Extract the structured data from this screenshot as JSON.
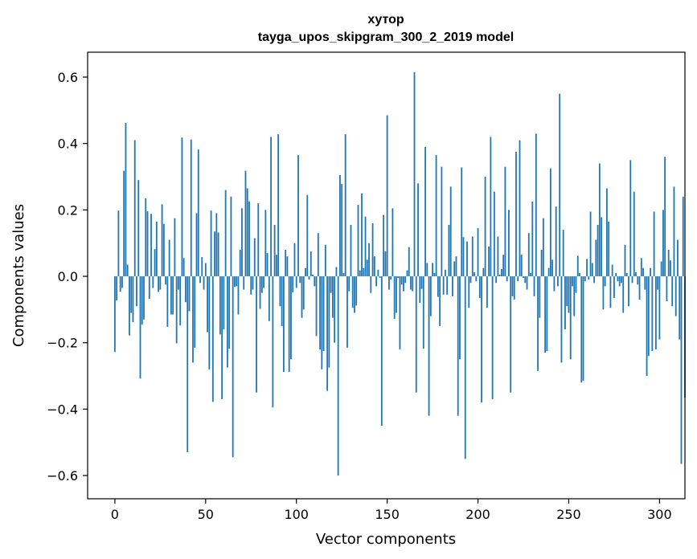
{
  "chart_data": {
    "type": "bar",
    "title": "хутор",
    "subtitle": "tayga_upos_skipgram_300_2_2019 model",
    "xlabel": "Vector components",
    "ylabel": "Components values",
    "xlim": [
      -15,
      314
    ],
    "ylim": [
      -0.67,
      0.675
    ],
    "xticks": [
      0,
      50,
      100,
      150,
      200,
      250,
      300
    ],
    "yticks": [
      0.6,
      0.4,
      0.2,
      0.0,
      -0.2,
      -0.4,
      -0.6
    ],
    "ytick_labels": [
      "0.6",
      "0.4",
      "0.2",
      "0.0",
      "−0.2",
      "−0.4",
      "−0.6"
    ],
    "bar_color": "#1f77b4",
    "grid": false,
    "values": [
      -0.228,
      -0.073,
      0.198,
      -0.046,
      -0.035,
      0.318,
      0.462,
      0.035,
      -0.178,
      -0.11,
      -0.138,
      0.41,
      -0.09,
      0.29,
      -0.308,
      -0.145,
      -0.13,
      0.235,
      0.196,
      -0.068,
      0.188,
      -0.035,
      0.082,
      0.165,
      -0.047,
      -0.04,
      0.217,
      0.158,
      -0.025,
      -0.152,
      0.11,
      -0.115,
      -0.115,
      0.175,
      -0.202,
      -0.04,
      -0.148,
      0.418,
      0.055,
      -0.078,
      -0.53,
      -0.105,
      0.412,
      -0.26,
      -0.215,
      0.19,
      0.382,
      -0.02,
      0.058,
      -0.04,
      0.04,
      -0.168,
      -0.28,
      0.198,
      -0.378,
      0.135,
      0.19,
      0.132,
      -0.175,
      -0.37,
      -0.16,
      0.26,
      -0.275,
      -0.218,
      0.24,
      -0.545,
      -0.032,
      -0.03,
      -0.115,
      0.08,
      0.205,
      -0.04,
      0.318,
      0.265,
      0.225,
      -0.055,
      -0.04,
      0.115,
      -0.35,
      0.22,
      -0.098,
      -0.05,
      -0.035,
      0.2,
      0.07,
      -0.135,
      0.42,
      -0.395,
      0.155,
      0.065,
      0.428,
      -0.09,
      -0.15,
      -0.288,
      0.08,
      0.06,
      -0.288,
      -0.25,
      -0.048,
      0.1,
      -0.035,
      0.365,
      -0.02,
      -0.125,
      -0.1,
      0.025,
      0.245,
      -0.01,
      0.075,
      0.005,
      -0.03,
      -0.18,
      0.13,
      -0.22,
      -0.28,
      -0.225,
      0.095,
      -0.345,
      -0.275,
      -0.05,
      -0.125,
      -0.2,
      0.028,
      -0.6,
      0.305,
      0.278,
      0.01,
      0.428,
      -0.215,
      -0.045,
      0.155,
      -0.095,
      -0.11,
      -0.088,
      0.215,
      0.018,
      0.25,
      0.025,
      0.18,
      0.05,
      0.1,
      -0.05,
      0.16,
      0.06,
      -0.03,
      0.02,
      -0.005,
      -0.45,
      0.185,
      0.075,
      0.485,
      -0.04,
      -0.01,
      0.205,
      -0.128,
      -0.11,
      -0.005,
      -0.22,
      -0.025,
      -0.045,
      -0.02,
      0.018,
      0.088,
      -0.04,
      -0.045,
      0.615,
      -0.35,
      0.28,
      -0.08,
      -0.038,
      -0.218,
      0.39,
      0.04,
      -0.42,
      -0.12,
      0.04,
      0.01,
      0.365,
      -0.062,
      -0.15,
      0.33,
      -0.055,
      0.02,
      -0.055,
      0.155,
      0.27,
      -0.06,
      0.045,
      0.06,
      -0.42,
      -0.25,
      0.328,
      0.118,
      -0.55,
      0.105,
      -0.095,
      -0.02,
      0.12,
      0.012,
      -0.015,
      0.145,
      -0.065,
      -0.38,
      0.025,
      0.3,
      -0.095,
      0.09,
      0.42,
      -0.37,
      0.255,
      -0.02,
      0.12,
      0.005,
      0.022,
      0.065,
      0.33,
      -0.015,
      0.2,
      -0.35,
      -0.06,
      -0.07,
      0.375,
      -0.015,
      0.41,
      0.065,
      -0.005,
      -0.02,
      -0.04,
      0.13,
      0.01,
      0.225,
      -0.06,
      0.43,
      -0.285,
      -0.125,
      0.08,
      0.175,
      -0.23,
      -0.225,
      0.025,
      0.325,
      0.05,
      -0.045,
      0.21,
      -0.03,
      0.55,
      -0.26,
      0.14,
      -0.16,
      -0.09,
      -0.11,
      -0.25,
      -0.03,
      -0.12,
      -0.05,
      0.062,
      0.01,
      -0.32,
      -0.315,
      -0.015,
      0.052,
      -0.01,
      0.195,
      0.04,
      -0.02,
      0.11,
      0.155,
      0.34,
      0.178,
      -0.1,
      -0.03,
      0.265,
      0.165,
      -0.095,
      0.035,
      -0.065,
      0.01,
      -0.015,
      -0.03,
      -0.02,
      -0.11,
      0.095,
      0.01,
      -0.09,
      0.35,
      -0.02,
      0.255,
      0.012,
      -0.025,
      -0.07,
      0.055,
      0.025,
      -0.04,
      -0.3,
      -0.24,
      0.025,
      -0.225,
      0.195,
      -0.22,
      -0.04,
      -0.19,
      0.045,
      0.2,
      0.36,
      -0.075,
      0.08,
      0.048,
      -0.09,
      0.27,
      -0.12,
      0.11,
      -0.19,
      -0.565,
      0.24,
      -0.365
    ]
  }
}
